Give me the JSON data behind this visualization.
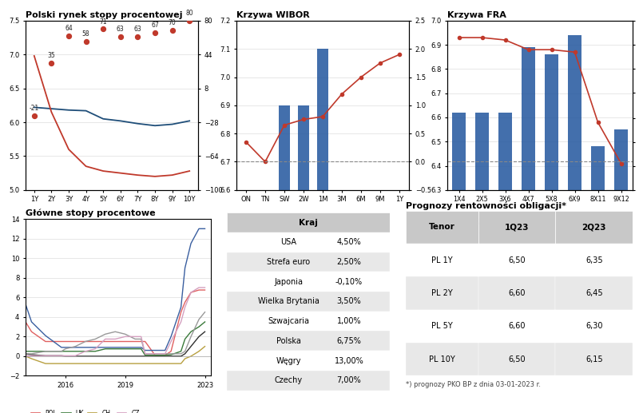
{
  "title_spw": "Polski rynek stopy procentowej",
  "title_wibor": "Krzywa WIBOR",
  "title_fra": "Krzywa FRA",
  "title_rates": "Główne stopy procentowe",
  "title_forecast": "Prognozy rentowności obligacji*",
  "spw_x": [
    1,
    2,
    3,
    4,
    5,
    6,
    7,
    8,
    9,
    10
  ],
  "spw_y": [
    6.22,
    6.2,
    6.18,
    6.17,
    6.05,
    6.02,
    5.98,
    5.95,
    5.97,
    6.02
  ],
  "irs_y": [
    6.98,
    6.15,
    5.6,
    5.35,
    5.28,
    5.25,
    5.22,
    5.2,
    5.22,
    5.28
  ],
  "asw_y": [
    -21,
    35,
    64,
    58,
    71,
    63,
    63,
    67,
    70,
    80
  ],
  "asw_labels": [
    "-21",
    "35",
    "64",
    "58",
    "71",
    "63",
    "63",
    "67",
    "70",
    "80"
  ],
  "spw_xlabels": [
    "1Y",
    "2Y",
    "3Y",
    "4Y",
    "5Y",
    "6Y",
    "7Y",
    "8Y",
    "9Y",
    "10Y"
  ],
  "spw_ylim": [
    5.0,
    7.5
  ],
  "spw_y2lim": [
    -100.0,
    80.0
  ],
  "spw_yticks": [
    5.0,
    5.5,
    6.0,
    6.5,
    7.0,
    7.5
  ],
  "spw_y2ticks": [
    -100.0,
    -64.0,
    -28.0,
    8.0,
    44.0,
    80.0
  ],
  "wibor_cats": [
    "ON",
    "TN",
    "SW",
    "2W",
    "1M",
    "3M",
    "6M",
    "9M",
    "1Y"
  ],
  "wibor_line": [
    6.77,
    6.7,
    6.83,
    6.85,
    6.86,
    6.94,
    7.0,
    7.05,
    7.08
  ],
  "wibor_bars": [
    0.0,
    0.0,
    6.9,
    6.9,
    7.1,
    0.0,
    0.0,
    0.0,
    0.0
  ],
  "wibor_ylim": [
    6.6,
    7.2
  ],
  "wibor_y2lim": [
    -0.5,
    2.5
  ],
  "wibor_yticks": [
    6.6,
    6.7,
    6.8,
    6.9,
    7.0,
    7.1,
    7.2
  ],
  "wibor_y2ticks": [
    -0.5,
    0.0,
    0.5,
    1.0,
    1.5,
    2.0,
    2.5
  ],
  "fra_cats": [
    "1X4",
    "2X5",
    "3X6",
    "4X7",
    "5X8",
    "6X9",
    "8X11",
    "9X12"
  ],
  "fra_line": [
    6.93,
    6.93,
    6.92,
    6.88,
    6.88,
    6.87,
    6.58,
    6.41
  ],
  "fra_bar_tops": [
    6.62,
    6.62,
    6.62,
    6.89,
    6.86,
    6.94,
    6.48,
    6.55
  ],
  "fra_ylim": [
    6.3,
    7.0
  ],
  "fra_y2lim": [
    -2.0,
    10.0
  ],
  "fra_yticks": [
    6.3,
    6.4,
    6.5,
    6.6,
    6.7,
    6.8,
    6.9,
    7.0
  ],
  "fra_y2ticks": [
    -2.0,
    -0.3,
    1.4,
    3.1,
    4.9,
    6.6,
    8.3,
    10.0
  ],
  "years_detail": [
    2014.0,
    2014.3,
    2015.0,
    2015.5,
    2015.8,
    2016.0,
    2016.5,
    2017.0,
    2017.5,
    2018.0,
    2018.5,
    2019.0,
    2019.5,
    2019.8,
    2020.0,
    2020.5,
    2021.0,
    2021.3,
    2021.8,
    2022.0,
    2022.3,
    2022.7,
    2023.0
  ],
  "pol": [
    3.5,
    2.5,
    1.5,
    1.5,
    1.5,
    1.5,
    1.5,
    1.5,
    1.5,
    1.5,
    1.5,
    1.5,
    1.5,
    1.5,
    1.5,
    0.1,
    0.1,
    0.5,
    4.5,
    5.5,
    6.5,
    6.75,
    6.75
  ],
  "emu": [
    0.25,
    0.15,
    0.05,
    0.05,
    0.05,
    0.0,
    0.0,
    0.0,
    0.0,
    0.0,
    0.0,
    0.0,
    0.0,
    0.0,
    0.0,
    0.0,
    0.0,
    0.0,
    0.0,
    0.25,
    1.0,
    2.0,
    2.5
  ],
  "uk": [
    0.5,
    0.5,
    0.5,
    0.5,
    0.5,
    0.5,
    0.5,
    0.5,
    0.5,
    0.75,
    0.75,
    0.75,
    0.75,
    0.75,
    0.1,
    0.1,
    0.1,
    0.15,
    0.5,
    1.75,
    2.5,
    3.0,
    3.5
  ],
  "hu": [
    5.3,
    3.5,
    2.1,
    1.35,
    0.9,
    0.9,
    0.9,
    0.9,
    0.9,
    0.9,
    0.9,
    0.9,
    0.9,
    0.9,
    0.6,
    0.6,
    0.6,
    2.0,
    5.0,
    9.0,
    11.5,
    13.0,
    13.0
  ],
  "ch": [
    0.0,
    -0.25,
    -0.75,
    -0.75,
    -0.75,
    -0.75,
    -0.75,
    -0.75,
    -0.75,
    -0.75,
    -0.75,
    -0.75,
    -0.75,
    -0.75,
    -0.75,
    -0.75,
    -0.75,
    -0.75,
    -0.75,
    -0.25,
    0.0,
    0.5,
    1.0
  ],
  "usa": [
    0.25,
    0.25,
    0.5,
    0.5,
    0.5,
    0.75,
    1.0,
    1.5,
    1.75,
    2.25,
    2.5,
    2.25,
    1.75,
    1.75,
    0.25,
    0.25,
    0.25,
    0.25,
    0.25,
    0.5,
    2.0,
    3.75,
    4.5
  ],
  "cz": [
    0.05,
    0.05,
    0.05,
    0.05,
    0.05,
    0.05,
    0.05,
    0.5,
    0.75,
    1.75,
    1.75,
    2.0,
    2.0,
    2.0,
    0.25,
    0.25,
    0.25,
    1.5,
    3.5,
    5.0,
    6.5,
    7.0,
    7.0
  ],
  "rates_xlim": [
    2014.0,
    2023.3
  ],
  "rates_ylim": [
    -2.0,
    14.0
  ],
  "rates_yticks": [
    -2.0,
    0.0,
    2.0,
    4.0,
    6.0,
    8.0,
    10.0,
    12.0,
    14.0
  ],
  "rates_xticks": [
    2016,
    2019,
    2023
  ],
  "table_countries": [
    "USA",
    "Strefa euro",
    "Japonia",
    "Wielka Brytania",
    "Szwajcaria",
    "Polska",
    "Węgry",
    "Czechy"
  ],
  "table_rates": [
    "4,50%",
    "2,50%",
    "-0,10%",
    "3,50%",
    "1,00%",
    "6,75%",
    "13,00%",
    "7,00%"
  ],
  "forecast_tenors": [
    "PL 1Y",
    "PL 2Y",
    "PL 5Y",
    "PL 10Y"
  ],
  "forecast_1q23": [
    "6,50",
    "6,60",
    "6,60",
    "6,50"
  ],
  "forecast_2q23": [
    "6,35",
    "6,45",
    "6,30",
    "6,15"
  ],
  "forecast_note": "*) prognozy PKO BP z dnia 03-01-2023 r.",
  "color_spw": "#1f4e79",
  "color_irs": "#c0392b",
  "color_asw": "#c0392b",
  "color_red_line": "#c0392b",
  "color_bar_blue": "#2e5fa3",
  "color_pol": "#e06060",
  "color_emu": "#303030",
  "color_uk": "#3a7a3a",
  "color_hu": "#3a5fa0",
  "color_ch": "#b8a040",
  "color_usa": "#999999",
  "color_cz": "#d4a0c0",
  "table_header_bg": "#c8c8c8",
  "table_row_bg1": "#ffffff",
  "table_row_bg2": "#e8e8e8"
}
